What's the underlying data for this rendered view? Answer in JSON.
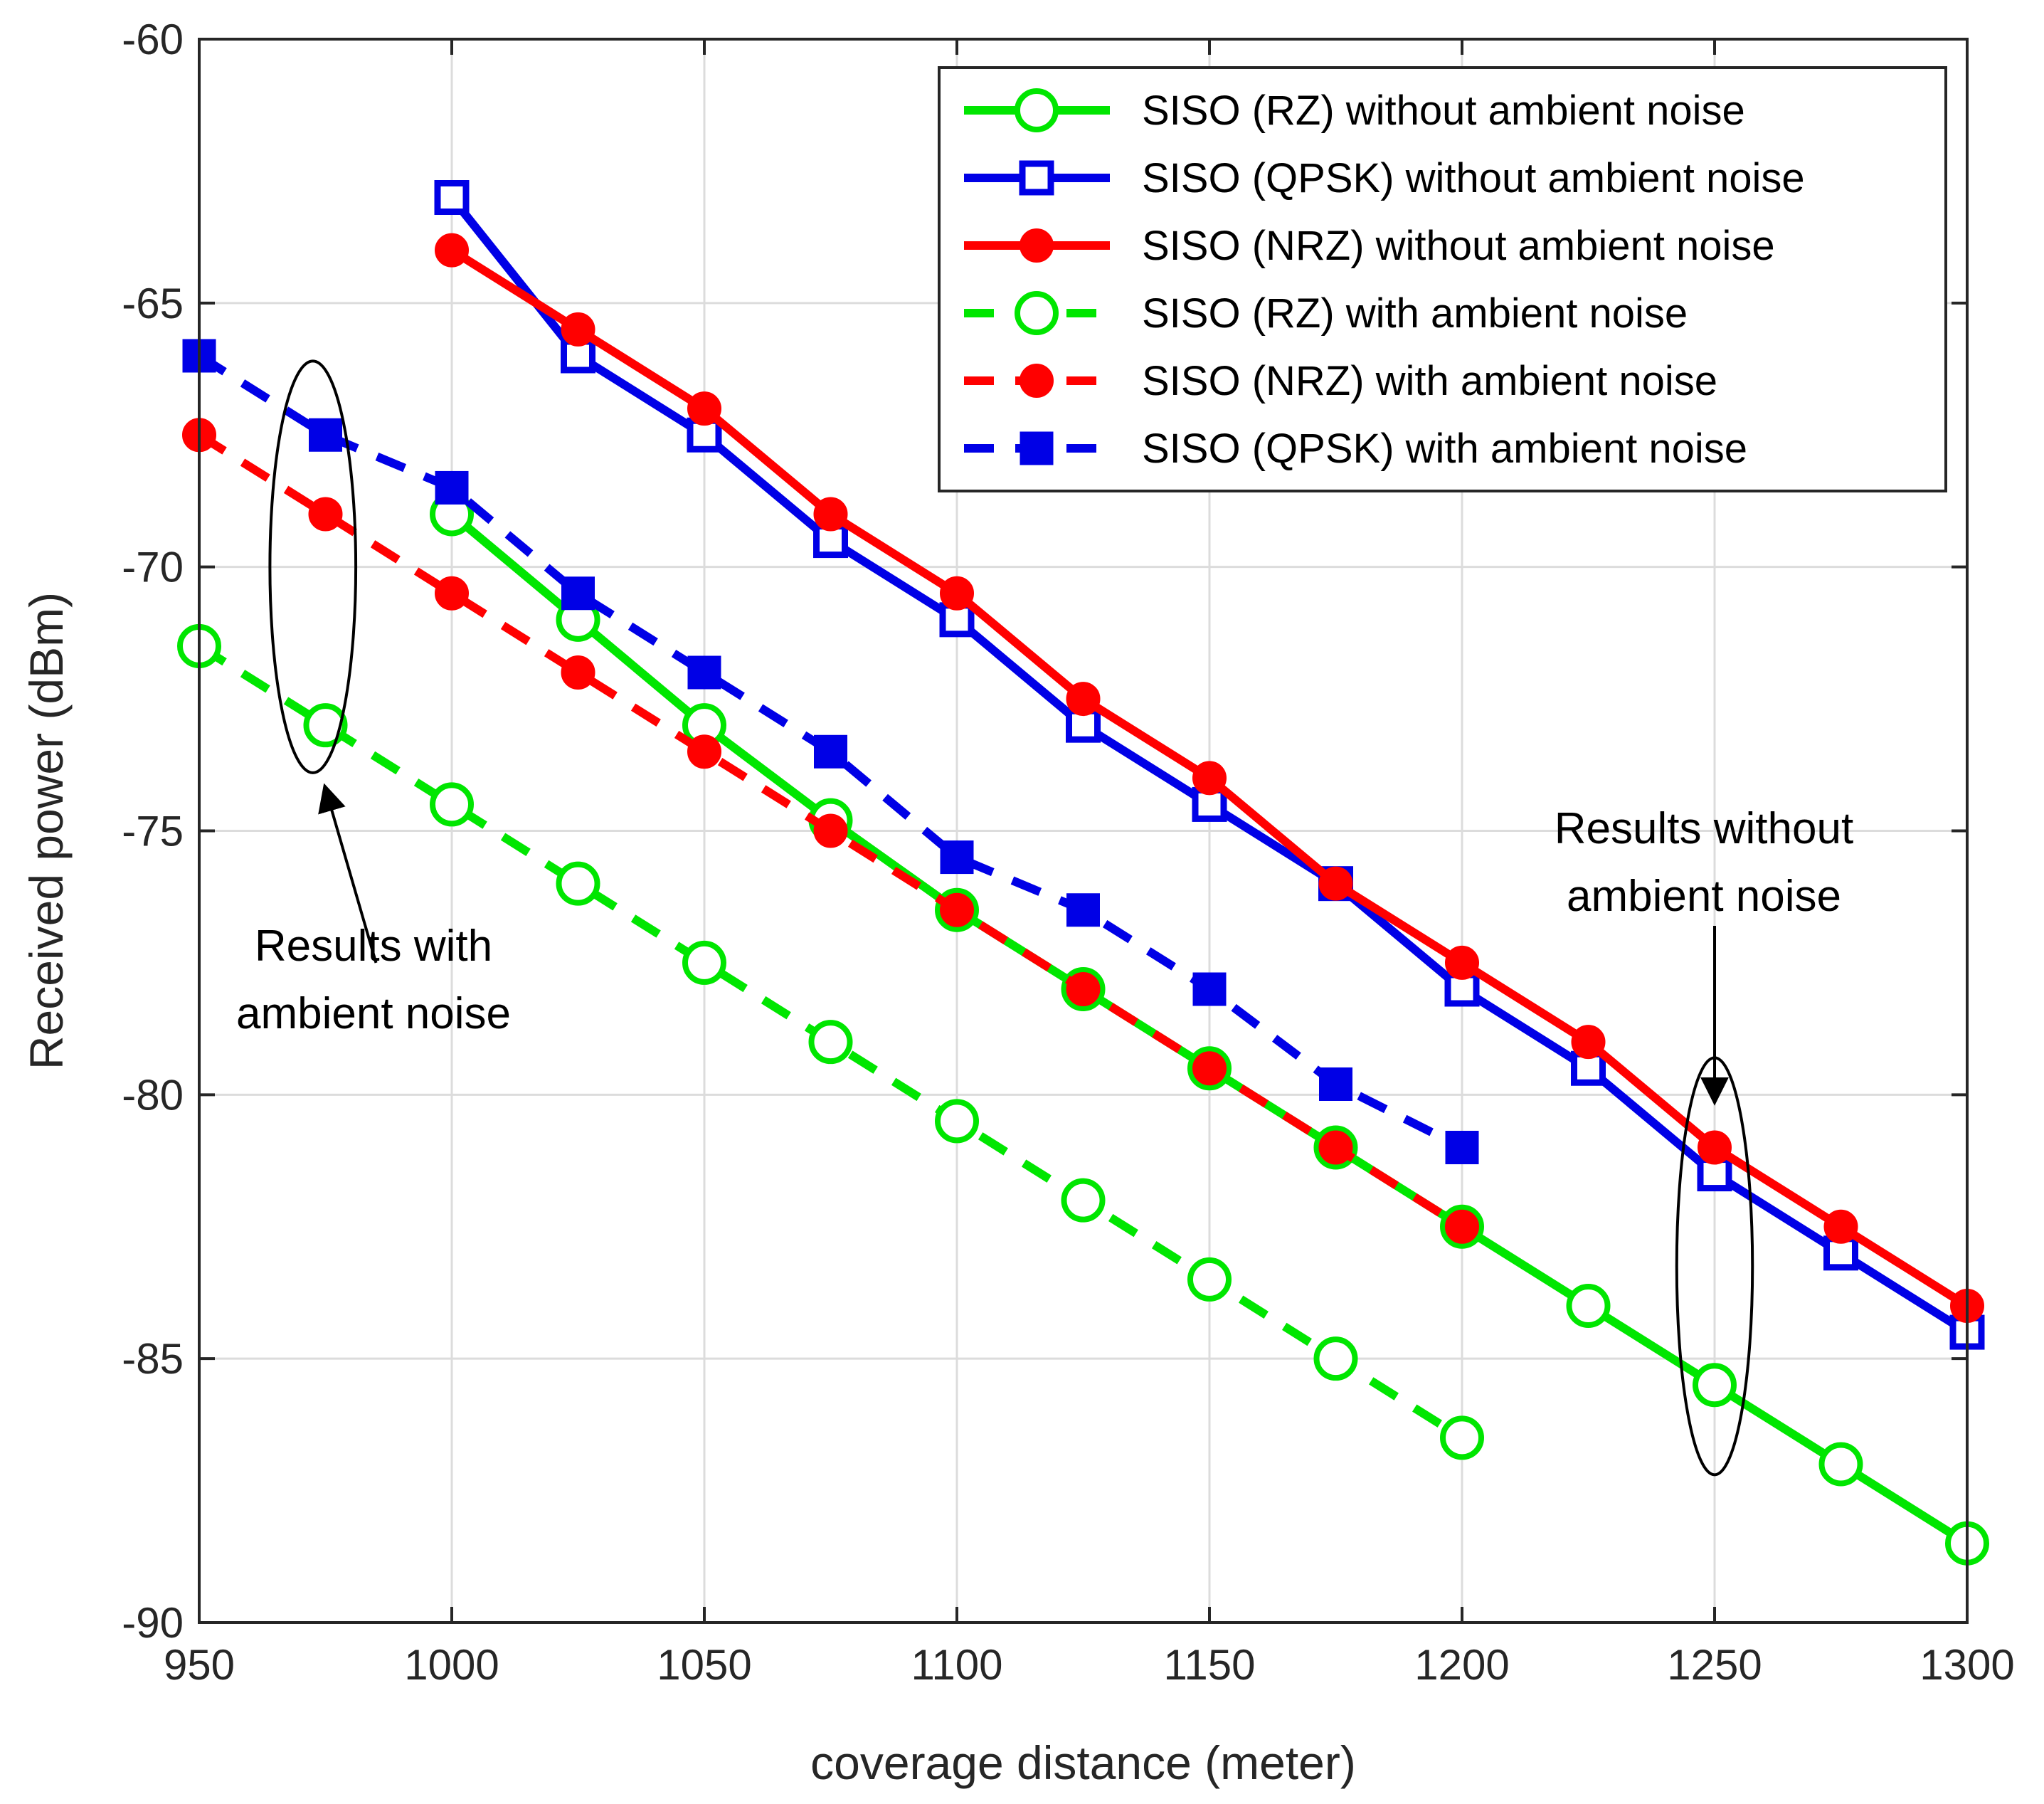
{
  "chart_data": {
    "type": "line",
    "title": "",
    "xlabel": "coverage distance (meter)",
    "ylabel": "Received power (dBm)",
    "xlim": [
      950,
      1300
    ],
    "ylim": [
      -90,
      -60
    ],
    "xticks": [
      950,
      1000,
      1050,
      1100,
      1150,
      1200,
      1250,
      1300
    ],
    "yticks": [
      -90,
      -85,
      -80,
      -75,
      -70,
      -65,
      -60
    ],
    "grid": true,
    "legend_position": "top-right",
    "series": [
      {
        "name": "SISO (RZ) without ambient noise",
        "color": "#00e600",
        "style": "solid",
        "marker": "circle-open",
        "x": [
          1000,
          1025,
          1050,
          1075,
          1100,
          1125,
          1150,
          1175,
          1200,
          1225,
          1250,
          1275,
          1300
        ],
        "y": [
          -69,
          -71,
          -73,
          -74.8,
          -76.5,
          -78,
          -79.5,
          -81,
          -82.5,
          -84,
          -85.5,
          -87,
          -88.5
        ]
      },
      {
        "name": "SISO (QPSK) without ambient noise",
        "color": "#0000e6",
        "style": "solid",
        "marker": "square-open",
        "x": [
          1000,
          1025,
          1050,
          1075,
          1100,
          1125,
          1150,
          1175,
          1200,
          1225,
          1250,
          1275,
          1300
        ],
        "y": [
          -63,
          -66,
          -67.5,
          -69.5,
          -71,
          -73,
          -74.5,
          -76,
          -78,
          -79.5,
          -81.5,
          -83,
          -84.5
        ]
      },
      {
        "name": "SISO (NRZ) without ambient noise",
        "color": "#ff0000",
        "style": "solid",
        "marker": "circle-filled",
        "x": [
          1000,
          1025,
          1050,
          1075,
          1100,
          1125,
          1150,
          1175,
          1200,
          1225,
          1250,
          1275,
          1300
        ],
        "y": [
          -64,
          -65.5,
          -67,
          -69,
          -70.5,
          -72.5,
          -74,
          -76,
          -77.5,
          -79,
          -81,
          -82.5,
          -84
        ]
      },
      {
        "name": "SISO (RZ) with ambient noise",
        "color": "#00e600",
        "style": "dashed",
        "marker": "circle-open",
        "x": [
          950,
          975,
          1000,
          1025,
          1050,
          1075,
          1100,
          1125,
          1150,
          1175,
          1200
        ],
        "y": [
          -71.5,
          -73,
          -74.5,
          -76,
          -77.5,
          -79,
          -80.5,
          -82,
          -83.5,
          -85,
          -86.5
        ]
      },
      {
        "name": "SISO (NRZ) with ambient noise",
        "color": "#ff0000",
        "style": "dashed",
        "marker": "circle-filled",
        "x": [
          950,
          975,
          1000,
          1025,
          1050,
          1075,
          1100,
          1125,
          1150,
          1175,
          1200
        ],
        "y": [
          -67.5,
          -69,
          -70.5,
          -72,
          -73.5,
          -75,
          -76.5,
          -78,
          -79.5,
          -81,
          -82.5
        ]
      },
      {
        "name": "SISO (QPSK) with ambient noise",
        "color": "#0000e6",
        "style": "dashed",
        "marker": "square-filled",
        "x": [
          950,
          975,
          1000,
          1025,
          1050,
          1075,
          1100,
          1125,
          1150,
          1175,
          1200
        ],
        "y": [
          -66,
          -67.5,
          -68.5,
          -70.5,
          -72,
          -73.5,
          -75.5,
          -76.5,
          -78,
          -79.8,
          -81
        ]
      }
    ],
    "annotations": [
      {
        "text_lines": [
          "Results with",
          "ambient noise"
        ],
        "ellipse": {
          "cx": 972.5,
          "cy": -70,
          "rx_units": 8.5,
          "ry_dbm": 3.9
        },
        "arrow_from": [
          985,
          -77.5
        ],
        "arrow_to": [
          975,
          -74.2
        ]
      },
      {
        "text_lines": [
          "Results without",
          "ambient noise"
        ],
        "ellipse": {
          "cx": 1250,
          "cy": -83.25,
          "rx_units": 7.5,
          "ry_dbm": 3.95
        },
        "arrow_from": [
          1250,
          -76.8
        ],
        "arrow_to": [
          1250,
          -80.1
        ]
      }
    ]
  }
}
